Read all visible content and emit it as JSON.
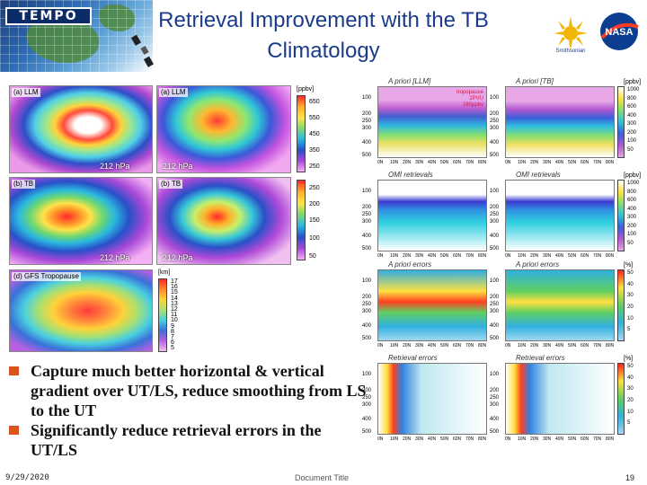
{
  "header": {
    "logo_text": "TEMPO",
    "title_line1": "Retrieval Improvement with the TB",
    "title_line2": "Climatology",
    "smithsonian_label": "Smithsonian",
    "nasa_label": "NASA"
  },
  "left_panels": [
    {
      "id": "a-llm-1",
      "label": "(a) LLM",
      "footer": "212 hPa"
    },
    {
      "id": "a-llm-2",
      "label": "(a) LLM",
      "footer": "212 hPa"
    },
    {
      "id": "b-tb-1",
      "label": "(b) TB",
      "footer": "212 hPa"
    },
    {
      "id": "b-tb-2",
      "label": "(b) TB",
      "footer": "212 hPa"
    },
    {
      "id": "d-gfs",
      "label": "(d) GFS Tropopause",
      "footer": ""
    }
  ],
  "colorbars": [
    {
      "unit": "[ppbv]",
      "ticks": [
        "650",
        "550",
        "450",
        "350",
        "250"
      ]
    },
    {
      "unit": "",
      "ticks": [
        "250",
        "200",
        "150",
        "100",
        "50"
      ]
    },
    {
      "unit": "[km]",
      "ticks": [
        "17",
        "16",
        "15",
        "14",
        "13",
        "12",
        "11",
        "10",
        "9",
        "8",
        "7",
        "6",
        "5"
      ]
    }
  ],
  "right_panels": [
    {
      "title": "A priori [LLM]",
      "badge": [
        "tropopause",
        "2PVU",
        "180ppbv"
      ]
    },
    {
      "title": "A priori [TB]",
      "badge": []
    },
    {
      "title": "OMI retrievals",
      "badge": []
    },
    {
      "title": "OMI retrievals",
      "badge": []
    },
    {
      "title": "A priori errors",
      "badge": []
    },
    {
      "title": "A priori errors",
      "badge": []
    },
    {
      "title": "Retrieval errors",
      "badge": []
    },
    {
      "title": "Retrieval errors",
      "badge": []
    }
  ],
  "right_units": [
    "[ppbv]",
    "[ppbv]",
    "[%]",
    "[%]"
  ],
  "right_colorbar_ticks": [
    [
      "1000",
      "800",
      "600",
      "400",
      "300",
      "200",
      "100",
      "50"
    ],
    [
      "1000",
      "800",
      "600",
      "400",
      "300",
      "200",
      "100",
      "50"
    ],
    [
      "50",
      "40",
      "30",
      "20",
      "10",
      "5"
    ],
    [
      "50",
      "40",
      "30",
      "20",
      "10",
      "5"
    ]
  ],
  "y_ticks": [
    "100",
    "200",
    "250",
    "300",
    "400",
    "500"
  ],
  "x_ticks": [
    "0N",
    "10N",
    "20N",
    "30N",
    "40N",
    "50N",
    "60N",
    "70N",
    "80N"
  ],
  "bullets": [
    "Capture much better horizontal & vertical gradient over UT/LS, reduce smoothing from LS to the UT",
    "Significantly reduce retrieval errors in the UT/LS"
  ],
  "footer": {
    "date": "9/29/2020",
    "doc_title": "Document Title",
    "page": "19"
  },
  "colors": {
    "title": "#1a3b8c",
    "bullet": "#d9531e"
  }
}
